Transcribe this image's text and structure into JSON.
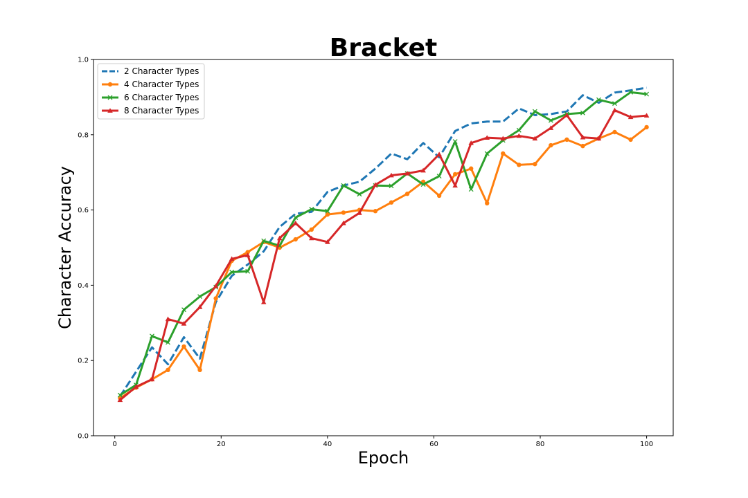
{
  "chart_data": {
    "type": "line",
    "title": "Bracket",
    "xlabel": "Epoch",
    "ylabel": "Character Accuracy",
    "xlim": [
      -4,
      105
    ],
    "ylim": [
      0.0,
      1.0
    ],
    "xticks": [
      0,
      20,
      40,
      60,
      80,
      100
    ],
    "yticks": [
      0.0,
      0.2,
      0.4,
      0.6,
      0.8,
      1.0
    ],
    "xtick_labels": [
      "0",
      "20",
      "40",
      "60",
      "80",
      "100"
    ],
    "ytick_labels": [
      "0.0",
      "0.2",
      "0.4",
      "0.6",
      "0.8",
      "1.0"
    ],
    "grid": false,
    "legend_position": "top-left",
    "x": [
      1,
      4,
      7,
      10,
      13,
      16,
      19,
      22,
      25,
      28,
      31,
      34,
      37,
      40,
      43,
      46,
      49,
      52,
      55,
      58,
      61,
      64,
      67,
      70,
      73,
      76,
      79,
      82,
      85,
      88,
      91,
      94,
      97,
      100
    ],
    "series": [
      {
        "name": "2 Character Types",
        "color": "#1f77b4",
        "style": "dashed",
        "marker": "none",
        "values": [
          0.105,
          0.17,
          0.235,
          0.19,
          0.262,
          0.205,
          0.355,
          0.425,
          0.455,
          0.49,
          0.555,
          0.59,
          0.595,
          0.648,
          0.665,
          0.675,
          0.71,
          0.75,
          0.735,
          0.778,
          0.74,
          0.81,
          0.83,
          0.835,
          0.835,
          0.87,
          0.852,
          0.855,
          0.862,
          0.905,
          0.885,
          0.912,
          0.918,
          0.925
        ]
      },
      {
        "name": "4 Character Types",
        "color": "#ff7f0e",
        "style": "solid",
        "marker": "circle",
        "values": [
          0.1,
          0.128,
          0.15,
          0.175,
          0.237,
          0.175,
          0.365,
          0.465,
          0.488,
          0.515,
          0.5,
          0.522,
          0.548,
          0.588,
          0.593,
          0.6,
          0.597,
          0.62,
          0.643,
          0.675,
          0.638,
          0.695,
          0.71,
          0.618,
          0.75,
          0.72,
          0.722,
          0.772,
          0.787,
          0.77,
          0.79,
          0.807,
          0.787,
          0.82
        ]
      },
      {
        "name": "6 Character Types",
        "color": "#2ca02c",
        "style": "solid",
        "marker": "x",
        "values": [
          0.108,
          0.135,
          0.265,
          0.248,
          0.335,
          0.37,
          0.395,
          0.435,
          0.437,
          0.518,
          0.505,
          0.58,
          0.602,
          0.597,
          0.665,
          0.642,
          0.665,
          0.664,
          0.697,
          0.668,
          0.69,
          0.782,
          0.655,
          0.75,
          0.785,
          0.812,
          0.862,
          0.838,
          0.855,
          0.858,
          0.893,
          0.883,
          0.913,
          0.908
        ]
      },
      {
        "name": "8 Character Types",
        "color": "#d62728",
        "style": "solid",
        "marker": "triangle",
        "values": [
          0.095,
          0.13,
          0.15,
          0.31,
          0.298,
          0.342,
          0.398,
          0.47,
          0.48,
          0.355,
          0.525,
          0.565,
          0.525,
          0.515,
          0.565,
          0.592,
          0.667,
          0.692,
          0.697,
          0.705,
          0.748,
          0.665,
          0.778,
          0.792,
          0.79,
          0.797,
          0.79,
          0.818,
          0.852,
          0.793,
          0.79,
          0.865,
          0.847,
          0.851
        ]
      }
    ]
  }
}
